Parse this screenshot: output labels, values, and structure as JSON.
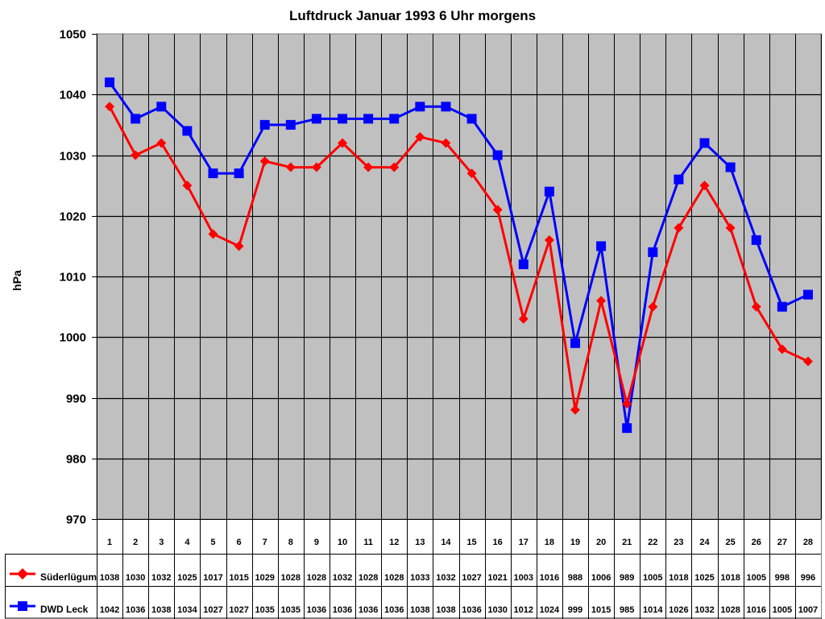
{
  "chart_data": {
    "type": "line",
    "title": "Luftdruck Januar 1993 6 Uhr morgens",
    "xlabel": "",
    "ylabel": "hPa",
    "ylim": [
      970,
      1050
    ],
    "yticks": [
      970,
      980,
      990,
      1000,
      1010,
      1020,
      1030,
      1040,
      1050
    ],
    "grid": true,
    "legend_position": "data-table-left",
    "categories": [
      "1",
      "2",
      "3",
      "4",
      "5",
      "6",
      "7",
      "8",
      "9",
      "10",
      "11",
      "12",
      "13",
      "14",
      "15",
      "16",
      "17",
      "18",
      "19",
      "20",
      "21",
      "22",
      "23",
      "24",
      "25",
      "26",
      "27",
      "28"
    ],
    "series": [
      {
        "name": "Süderlügum",
        "color": "#ff0000",
        "marker": "diamond",
        "values": [
          1038,
          1030,
          1032,
          1025,
          1017,
          1015,
          1029,
          1028,
          1028,
          1032,
          1028,
          1028,
          1033,
          1032,
          1027,
          1021,
          1003,
          1016,
          988,
          1006,
          989,
          1005,
          1018,
          1025,
          1018,
          1005,
          998,
          996
        ]
      },
      {
        "name": "DWD Leck",
        "color": "#0000ff",
        "marker": "square",
        "values": [
          1042,
          1036,
          1038,
          1034,
          1027,
          1027,
          1035,
          1035,
          1036,
          1036,
          1036,
          1036,
          1038,
          1038,
          1036,
          1030,
          1012,
          1024,
          999,
          1015,
          985,
          1014,
          1026,
          1032,
          1028,
          1016,
          1005,
          1007
        ]
      }
    ],
    "plot_background": "#c0c0c0",
    "data_table": true
  }
}
